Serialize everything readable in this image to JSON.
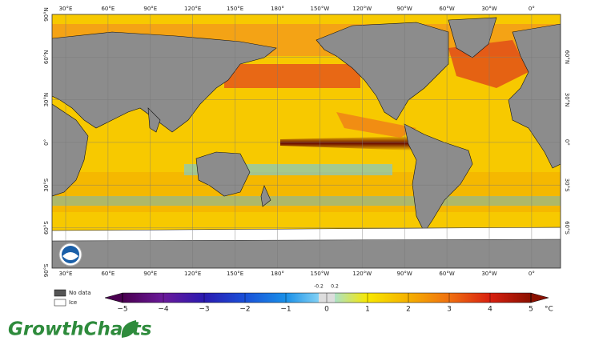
{
  "map": {
    "lon_labels": [
      "30°E",
      "60°E",
      "90°E",
      "120°E",
      "150°E",
      "180°",
      "150°W",
      "120°W",
      "90°W",
      "60°W",
      "30°W",
      "0°"
    ],
    "lat_labels": [
      "90°N",
      "60°N",
      "30°N",
      "0°",
      "30°S",
      "60°S",
      "90°S"
    ]
  },
  "legend": {
    "no_data": "No data",
    "ice": "Ice"
  },
  "colorbar": {
    "ticks": [
      "−5",
      "−4",
      "−3",
      "−2",
      "−1",
      "0",
      "1",
      "2",
      "3",
      "4",
      "5"
    ],
    "small_ticks": [
      "-0.2",
      "0.2"
    ],
    "unit": "°C"
  },
  "brand": "GrowthCharts"
}
